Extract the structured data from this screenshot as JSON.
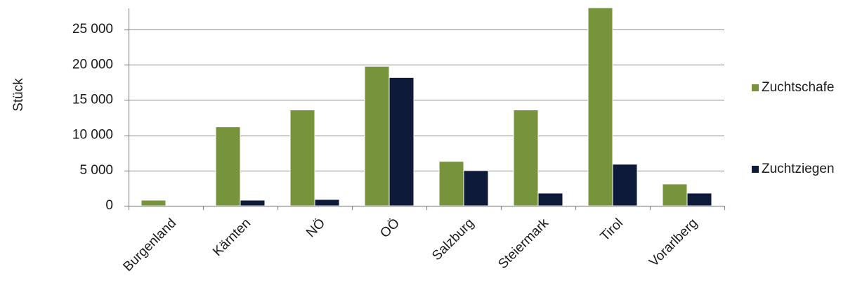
{
  "chart_data": {
    "type": "bar",
    "ylabel": "Stück",
    "xlabel": "",
    "ylim": [
      0,
      28000
    ],
    "yticks": [
      0,
      5000,
      10000,
      15000,
      20000,
      25000
    ],
    "ytick_labels": [
      "0",
      "5 000",
      "10 000",
      "15 000",
      "20 000",
      "25 000"
    ],
    "grid": true,
    "legend_position": "right",
    "categories": [
      "Burgenland",
      "Kärnten",
      "NÖ",
      "OÖ",
      "Salzburg",
      "Steiermark",
      "Tirol",
      "Vorarlberg"
    ],
    "series": [
      {
        "name": "Zuchtschafe",
        "color": "#77933c",
        "values": [
          800,
          11200,
          13600,
          19800,
          6300,
          13600,
          28100,
          3100
        ]
      },
      {
        "name": "Zuchtziegen",
        "color": "#0d1a3a",
        "values": [
          0,
          800,
          900,
          18200,
          5000,
          1800,
          5900,
          1800
        ]
      }
    ]
  }
}
